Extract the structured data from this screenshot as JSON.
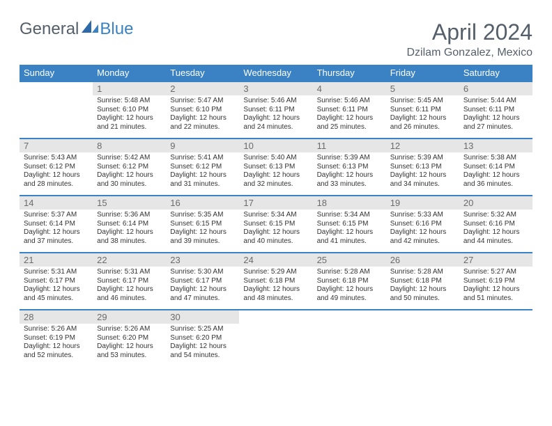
{
  "brand": {
    "part1": "General",
    "part2": "Blue"
  },
  "title": "April 2024",
  "location": "Dzilam Gonzalez, Mexico",
  "colors": {
    "header_bg": "#3b82c4",
    "header_text": "#ffffff",
    "daynum_bg": "#e6e6e6",
    "daynum_text": "#6b6b6b",
    "body_text": "#333333",
    "rule": "#3b82c4",
    "page_bg": "#ffffff",
    "brand_gray": "#555f6a",
    "brand_blue": "#3b82c4"
  },
  "weekdays": [
    "Sunday",
    "Monday",
    "Tuesday",
    "Wednesday",
    "Thursday",
    "Friday",
    "Saturday"
  ],
  "calendar": {
    "type": "table",
    "columns": 7,
    "rows": 5,
    "start_weekday_index": 1,
    "days": [
      {
        "n": 1,
        "sunrise": "5:48 AM",
        "sunset": "6:10 PM",
        "daylight": "12 hours and 21 minutes."
      },
      {
        "n": 2,
        "sunrise": "5:47 AM",
        "sunset": "6:10 PM",
        "daylight": "12 hours and 22 minutes."
      },
      {
        "n": 3,
        "sunrise": "5:46 AM",
        "sunset": "6:11 PM",
        "daylight": "12 hours and 24 minutes."
      },
      {
        "n": 4,
        "sunrise": "5:46 AM",
        "sunset": "6:11 PM",
        "daylight": "12 hours and 25 minutes."
      },
      {
        "n": 5,
        "sunrise": "5:45 AM",
        "sunset": "6:11 PM",
        "daylight": "12 hours and 26 minutes."
      },
      {
        "n": 6,
        "sunrise": "5:44 AM",
        "sunset": "6:11 PM",
        "daylight": "12 hours and 27 minutes."
      },
      {
        "n": 7,
        "sunrise": "5:43 AM",
        "sunset": "6:12 PM",
        "daylight": "12 hours and 28 minutes."
      },
      {
        "n": 8,
        "sunrise": "5:42 AM",
        "sunset": "6:12 PM",
        "daylight": "12 hours and 30 minutes."
      },
      {
        "n": 9,
        "sunrise": "5:41 AM",
        "sunset": "6:12 PM",
        "daylight": "12 hours and 31 minutes."
      },
      {
        "n": 10,
        "sunrise": "5:40 AM",
        "sunset": "6:13 PM",
        "daylight": "12 hours and 32 minutes."
      },
      {
        "n": 11,
        "sunrise": "5:39 AM",
        "sunset": "6:13 PM",
        "daylight": "12 hours and 33 minutes."
      },
      {
        "n": 12,
        "sunrise": "5:39 AM",
        "sunset": "6:13 PM",
        "daylight": "12 hours and 34 minutes."
      },
      {
        "n": 13,
        "sunrise": "5:38 AM",
        "sunset": "6:14 PM",
        "daylight": "12 hours and 36 minutes."
      },
      {
        "n": 14,
        "sunrise": "5:37 AM",
        "sunset": "6:14 PM",
        "daylight": "12 hours and 37 minutes."
      },
      {
        "n": 15,
        "sunrise": "5:36 AM",
        "sunset": "6:14 PM",
        "daylight": "12 hours and 38 minutes."
      },
      {
        "n": 16,
        "sunrise": "5:35 AM",
        "sunset": "6:15 PM",
        "daylight": "12 hours and 39 minutes."
      },
      {
        "n": 17,
        "sunrise": "5:34 AM",
        "sunset": "6:15 PM",
        "daylight": "12 hours and 40 minutes."
      },
      {
        "n": 18,
        "sunrise": "5:34 AM",
        "sunset": "6:15 PM",
        "daylight": "12 hours and 41 minutes."
      },
      {
        "n": 19,
        "sunrise": "5:33 AM",
        "sunset": "6:16 PM",
        "daylight": "12 hours and 42 minutes."
      },
      {
        "n": 20,
        "sunrise": "5:32 AM",
        "sunset": "6:16 PM",
        "daylight": "12 hours and 44 minutes."
      },
      {
        "n": 21,
        "sunrise": "5:31 AM",
        "sunset": "6:17 PM",
        "daylight": "12 hours and 45 minutes."
      },
      {
        "n": 22,
        "sunrise": "5:31 AM",
        "sunset": "6:17 PM",
        "daylight": "12 hours and 46 minutes."
      },
      {
        "n": 23,
        "sunrise": "5:30 AM",
        "sunset": "6:17 PM",
        "daylight": "12 hours and 47 minutes."
      },
      {
        "n": 24,
        "sunrise": "5:29 AM",
        "sunset": "6:18 PM",
        "daylight": "12 hours and 48 minutes."
      },
      {
        "n": 25,
        "sunrise": "5:28 AM",
        "sunset": "6:18 PM",
        "daylight": "12 hours and 49 minutes."
      },
      {
        "n": 26,
        "sunrise": "5:28 AM",
        "sunset": "6:18 PM",
        "daylight": "12 hours and 50 minutes."
      },
      {
        "n": 27,
        "sunrise": "5:27 AM",
        "sunset": "6:19 PM",
        "daylight": "12 hours and 51 minutes."
      },
      {
        "n": 28,
        "sunrise": "5:26 AM",
        "sunset": "6:19 PM",
        "daylight": "12 hours and 52 minutes."
      },
      {
        "n": 29,
        "sunrise": "5:26 AM",
        "sunset": "6:20 PM",
        "daylight": "12 hours and 53 minutes."
      },
      {
        "n": 30,
        "sunrise": "5:25 AM",
        "sunset": "6:20 PM",
        "daylight": "12 hours and 54 minutes."
      }
    ]
  },
  "labels": {
    "sunrise_prefix": "Sunrise: ",
    "sunset_prefix": "Sunset: ",
    "daylight_prefix": "Daylight: "
  }
}
